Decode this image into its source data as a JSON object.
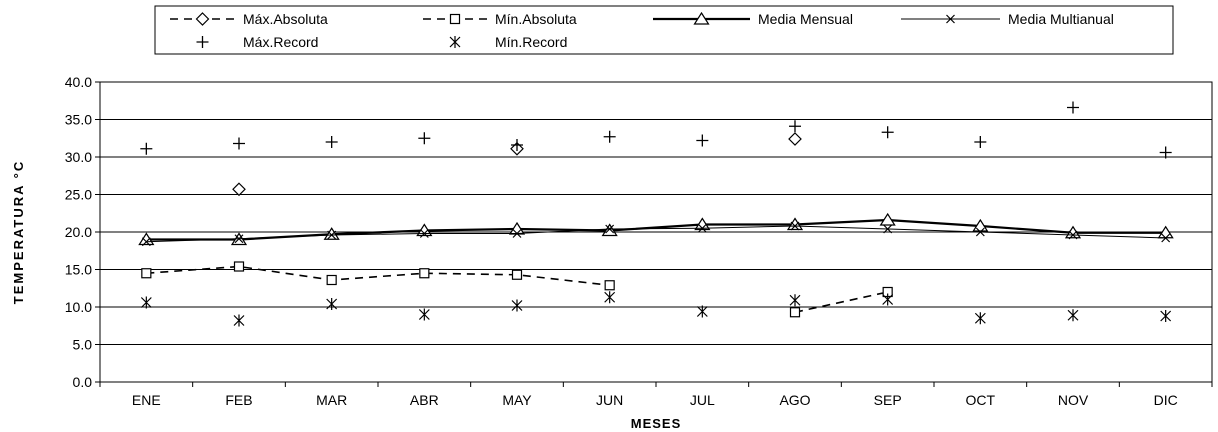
{
  "chart_data": {
    "type": "line",
    "title": "",
    "xlabel": "MESES",
    "ylabel": "TEMPERATURA °C",
    "ylim": [
      0,
      40
    ],
    "yticks": [
      "0.0",
      "5.0",
      "10.0",
      "15.0",
      "20.0",
      "25.0",
      "30.0",
      "35.0",
      "40.0"
    ],
    "grid": true,
    "legend_position": "top",
    "categories": [
      "ENE",
      "FEB",
      "MAR",
      "ABR",
      "MAY",
      "JUN",
      "JUL",
      "AGO",
      "SEP",
      "OCT",
      "NOV",
      "DIC"
    ],
    "series": [
      {
        "name": "Máx.Absoluta",
        "line": "dashed",
        "marker": "diamond",
        "values": [
          null,
          25.7,
          null,
          null,
          31.1,
          null,
          null,
          32.4,
          null,
          null,
          null,
          null
        ]
      },
      {
        "name": "Mín.Absoluta",
        "line": "dashed",
        "marker": "square",
        "values": [
          14.5,
          15.4,
          13.6,
          14.5,
          14.3,
          12.9,
          null,
          9.3,
          12.0,
          null,
          null,
          null
        ]
      },
      {
        "name": "Media Mensual",
        "line": "solid-thick",
        "marker": "triangle",
        "values": [
          19.0,
          19.0,
          19.7,
          20.2,
          20.4,
          20.2,
          21.0,
          21.0,
          21.6,
          20.8,
          19.9,
          19.9
        ]
      },
      {
        "name": "Media Multianual",
        "line": "solid-thin",
        "marker": "x",
        "values": [
          18.7,
          19.1,
          19.6,
          19.8,
          19.8,
          20.4,
          20.5,
          20.8,
          20.4,
          20.0,
          19.6,
          19.2
        ]
      },
      {
        "name": "Máx.Record",
        "line": "none",
        "marker": "plus",
        "values": [
          31.1,
          31.8,
          32.0,
          32.5,
          31.6,
          32.7,
          32.2,
          34.1,
          33.3,
          32.0,
          36.6,
          30.6
        ]
      },
      {
        "name": "Mín.Record",
        "line": "none",
        "marker": "star",
        "values": [
          10.6,
          8.2,
          10.4,
          9.0,
          10.2,
          11.3,
          9.4,
          10.9,
          11.0,
          8.5,
          8.9,
          8.8
        ]
      }
    ]
  }
}
